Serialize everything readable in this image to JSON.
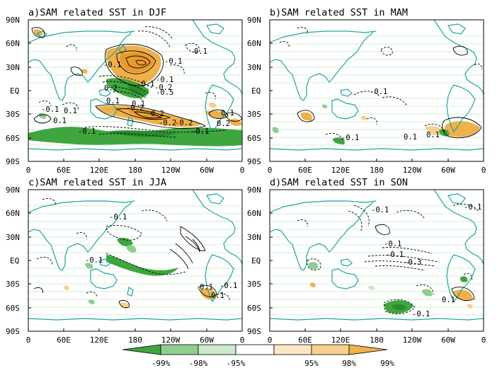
{
  "chart_data": {
    "type": "map",
    "colorbar": {
      "labels": [
        "-99%",
        "-98%",
        "-95%",
        "95%",
        "98%",
        "99%"
      ],
      "colors": [
        "#3fa53f",
        "#8ecf8e",
        "#cde9cd",
        "#ffffff",
        "#fce7c4",
        "#f7d08f",
        "#f0b04a"
      ]
    },
    "colors": {
      "coast": "#1aa89a",
      "positive": "#f0b04a",
      "negative": "#3fa53f",
      "contour": "#000000",
      "lat_grid": "#a8e0a8"
    },
    "axes": {
      "y_ticks": [
        "90N",
        "60N",
        "30N",
        "EQ",
        "30S",
        "60S",
        "90S"
      ],
      "x_ticks": [
        "0",
        "60E",
        "120E",
        "180",
        "120W",
        "60W",
        "0"
      ]
    },
    "panels": [
      {
        "title": "a)SAM related SST in DJF",
        "contour_labels": [
          "-0.1",
          "0.1",
          "-0.1",
          "-0.1",
          "-0.1",
          "0.2",
          "-0.2",
          "0.1",
          "0.1",
          "0.2",
          "-0.2",
          "-0.5",
          "0.1",
          "-0.1",
          "-0.2",
          "-0.1",
          "0.1",
          "0.2",
          "-0.1",
          "0.1",
          "-0.2"
        ]
      },
      {
        "title": "b)SAM related SST in MAM",
        "contour_labels": [
          "-0.1",
          "0.1",
          "-0.1",
          "0.1"
        ]
      },
      {
        "title": "c)SAM related SST in JJA",
        "contour_labels": [
          "-0.1",
          "-0.1",
          "0.1",
          "-0.1",
          "0.1"
        ]
      },
      {
        "title": "d)SAM related SST in SON",
        "contour_labels": [
          "-0.1",
          "-0.1",
          "-0.1",
          "-0.1",
          "-0.3",
          "-0.1",
          "0.1"
        ]
      }
    ]
  }
}
